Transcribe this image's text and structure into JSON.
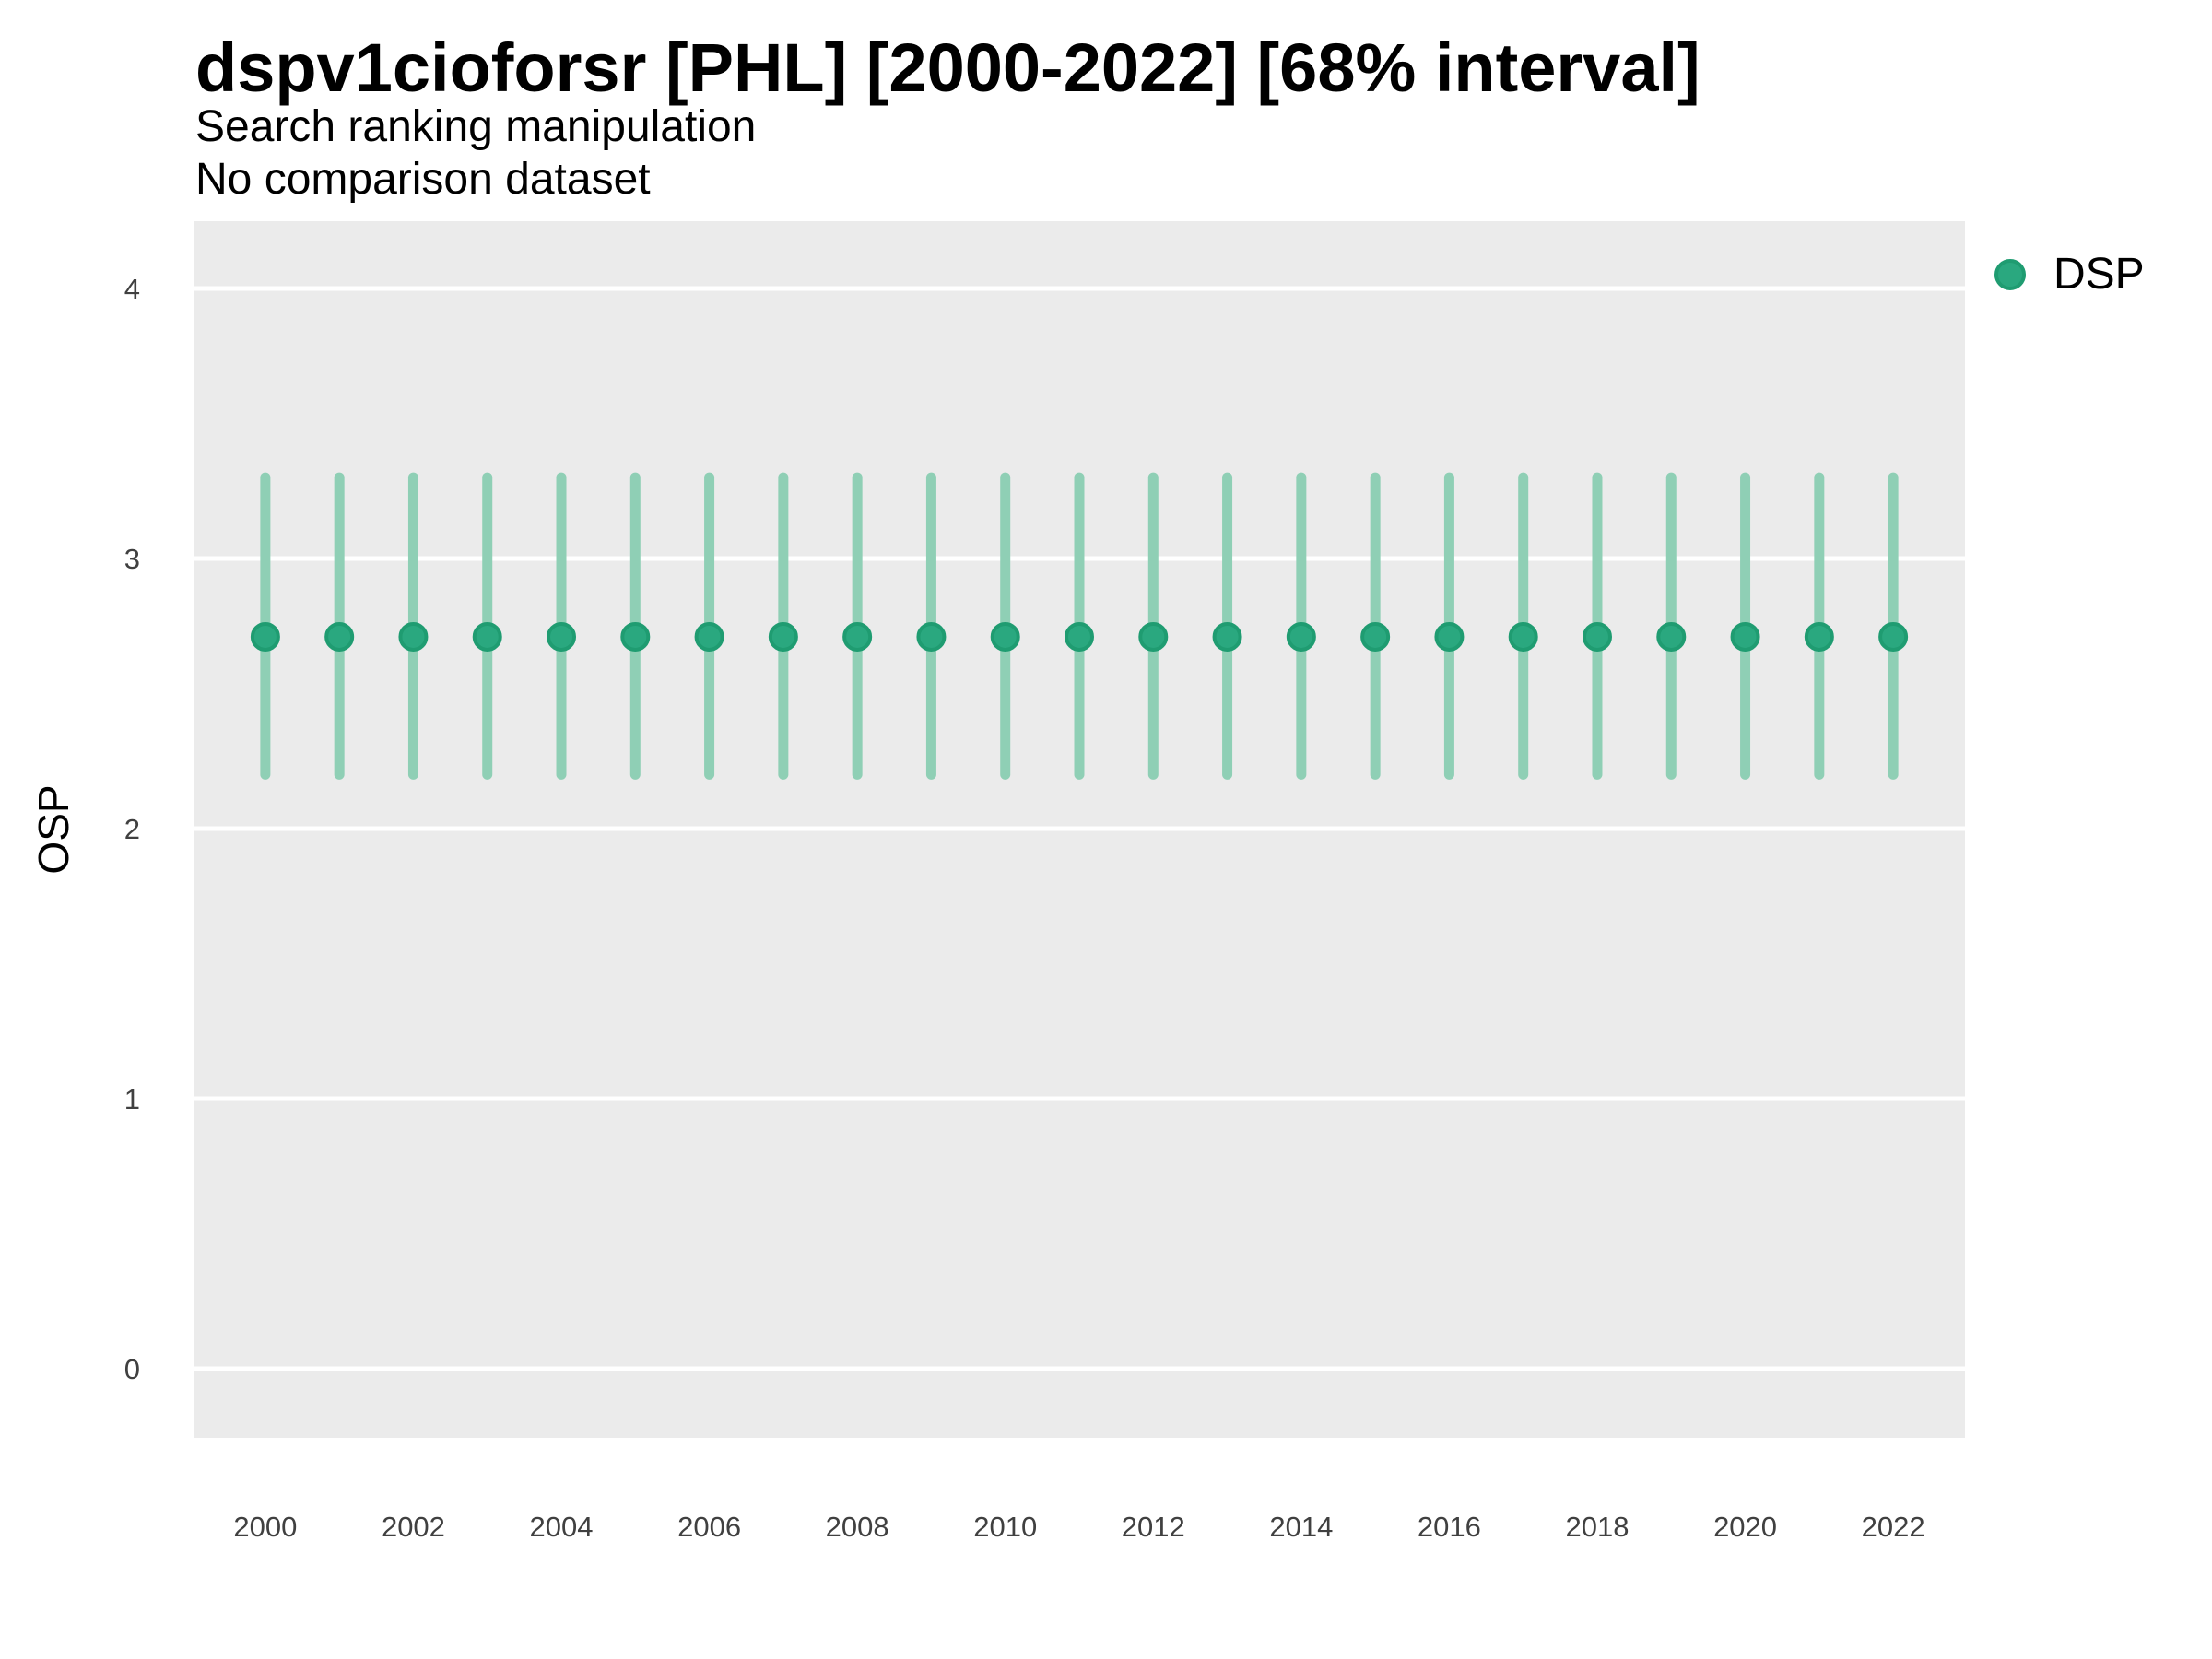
{
  "header": {
    "title": "dspv1cioforsr [PHL] [2000-2022] [68% interval]",
    "subtitle": "Search ranking manipulation",
    "subtitle2": "No comparison dataset"
  },
  "legend": {
    "position": "right",
    "items": [
      {
        "label": "DSP",
        "marker": "circle",
        "color": "#2aa87f",
        "stroke": "#1f9c71"
      }
    ]
  },
  "colors": {
    "panel_background": "#ebebeb",
    "gridline": "#ffffff",
    "point_fill": "#2aa87f",
    "point_stroke": "#1f9c71",
    "error_bar": "#8fcfb5",
    "tick_text": "#404040",
    "heading_text": "#000000"
  },
  "chart_data": {
    "type": "scatter",
    "title": "dspv1cioforsr [PHL] [2000-2022] [68% interval]",
    "subtitle": "Search ranking manipulation",
    "note": "No comparison dataset",
    "xlabel": "",
    "ylabel": "OSP",
    "grid": "major-horizontal-white-on-gray",
    "legend_position": "right",
    "interval_label": "68% interval",
    "x": [
      2000,
      2001,
      2002,
      2003,
      2004,
      2005,
      2006,
      2007,
      2008,
      2009,
      2010,
      2011,
      2012,
      2013,
      2014,
      2015,
      2016,
      2017,
      2018,
      2019,
      2020,
      2021,
      2022
    ],
    "series": [
      {
        "name": "DSP",
        "values": [
          2.71,
          2.71,
          2.71,
          2.71,
          2.71,
          2.71,
          2.71,
          2.71,
          2.71,
          2.71,
          2.71,
          2.71,
          2.71,
          2.71,
          2.71,
          2.71,
          2.71,
          2.71,
          2.71,
          2.71,
          2.71,
          2.71,
          2.71
        ],
        "interval_low": [
          2.2,
          2.2,
          2.2,
          2.2,
          2.2,
          2.2,
          2.2,
          2.2,
          2.2,
          2.2,
          2.2,
          2.2,
          2.2,
          2.2,
          2.2,
          2.2,
          2.2,
          2.2,
          2.2,
          2.2,
          2.2,
          2.2,
          2.2
        ],
        "interval_high": [
          3.3,
          3.3,
          3.3,
          3.3,
          3.3,
          3.3,
          3.3,
          3.3,
          3.3,
          3.3,
          3.3,
          3.3,
          3.3,
          3.3,
          3.3,
          3.3,
          3.3,
          3.3,
          3.3,
          3.3,
          3.3,
          3.3,
          3.3
        ]
      }
    ],
    "xticks": [
      2000,
      2002,
      2004,
      2006,
      2008,
      2010,
      2012,
      2014,
      2016,
      2018,
      2020,
      2022
    ],
    "yticks": [
      0,
      1,
      2,
      3,
      4
    ],
    "xlim": [
      1999.03,
      2022.97
    ],
    "ylim": [
      -0.256,
      4.249
    ]
  }
}
